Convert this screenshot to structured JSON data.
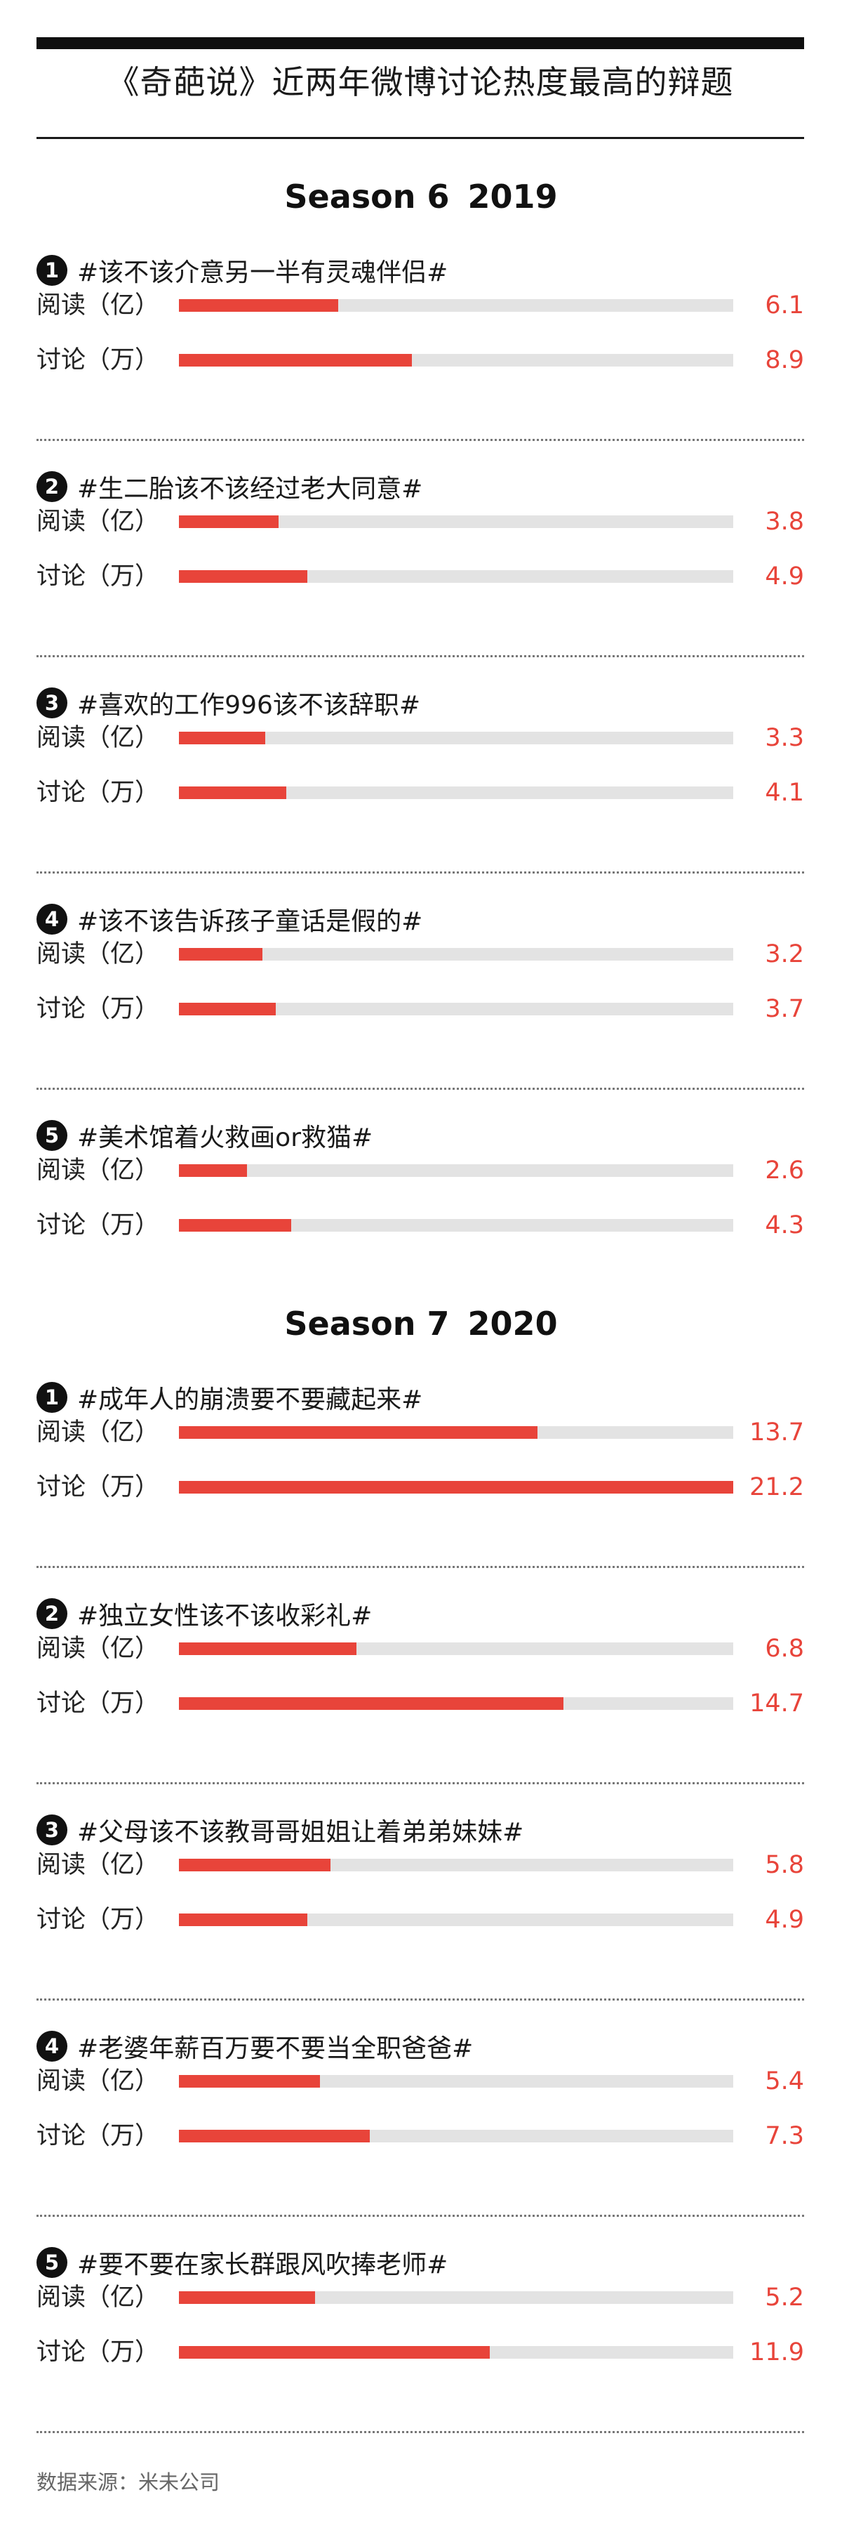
{
  "title": "《奇葩说》近两年微博讨论热度最高的辩题",
  "metric_labels": {
    "read": "阅读（亿）",
    "discuss": "讨论（万）"
  },
  "colors": {
    "accent": "#e8443a",
    "track": "#e3e3e3",
    "dark": "#111111"
  },
  "source": "数据来源：米未公司",
  "chart_data": {
    "type": "bar",
    "orientation": "horizontal",
    "xlim": [
      0,
      21.2
    ],
    "series": [
      {
        "name": "阅读（亿）"
      },
      {
        "name": "讨论（万）"
      }
    ],
    "groups": [
      {
        "season": "Season 6",
        "year": "2019",
        "topics": [
          {
            "rank": "1",
            "topic": "#该不该介意另一半有灵魂伴侣#",
            "read": 6.1,
            "discuss": 8.9,
            "read_label": "6.1",
            "discuss_label": "8.9"
          },
          {
            "rank": "2",
            "topic": "#生二胎该不该经过老大同意#",
            "read": 3.8,
            "discuss": 4.9,
            "read_label": "3.8",
            "discuss_label": "4.9"
          },
          {
            "rank": "3",
            "topic": "#喜欢的工作996该不该辞职#",
            "read": 3.3,
            "discuss": 4.1,
            "read_label": "3.3",
            "discuss_label": "4.1"
          },
          {
            "rank": "4",
            "topic": "#该不该告诉孩子童话是假的#",
            "read": 3.2,
            "discuss": 3.7,
            "read_label": "3.2",
            "discuss_label": "3.7"
          },
          {
            "rank": "5",
            "topic": "#美术馆着火救画or救猫#",
            "read": 2.6,
            "discuss": 4.3,
            "read_label": "2.6",
            "discuss_label": "4.3"
          }
        ]
      },
      {
        "season": "Season 7",
        "year": "2020",
        "topics": [
          {
            "rank": "1",
            "topic": "#成年人的崩溃要不要藏起来#",
            "read": 13.7,
            "discuss": 21.2,
            "read_label": "13.7",
            "discuss_label": "21.2"
          },
          {
            "rank": "2",
            "topic": "#独立女性该不该收彩礼#",
            "read": 6.8,
            "discuss": 14.7,
            "read_label": "6.8",
            "discuss_label": "14.7"
          },
          {
            "rank": "3",
            "topic": "#父母该不该教哥哥姐姐让着弟弟妹妹#",
            "read": 5.8,
            "discuss": 4.9,
            "read_label": "5.8",
            "discuss_label": "4.9"
          },
          {
            "rank": "4",
            "topic": "#老婆年薪百万要不要当全职爸爸#",
            "read": 5.4,
            "discuss": 7.3,
            "read_label": "5.4",
            "discuss_label": "7.3"
          },
          {
            "rank": "5",
            "topic": "#要不要在家长群跟风吹捧老师#",
            "read": 5.2,
            "discuss": 11.9,
            "read_label": "5.2",
            "discuss_label": "11.9"
          }
        ]
      }
    ]
  }
}
